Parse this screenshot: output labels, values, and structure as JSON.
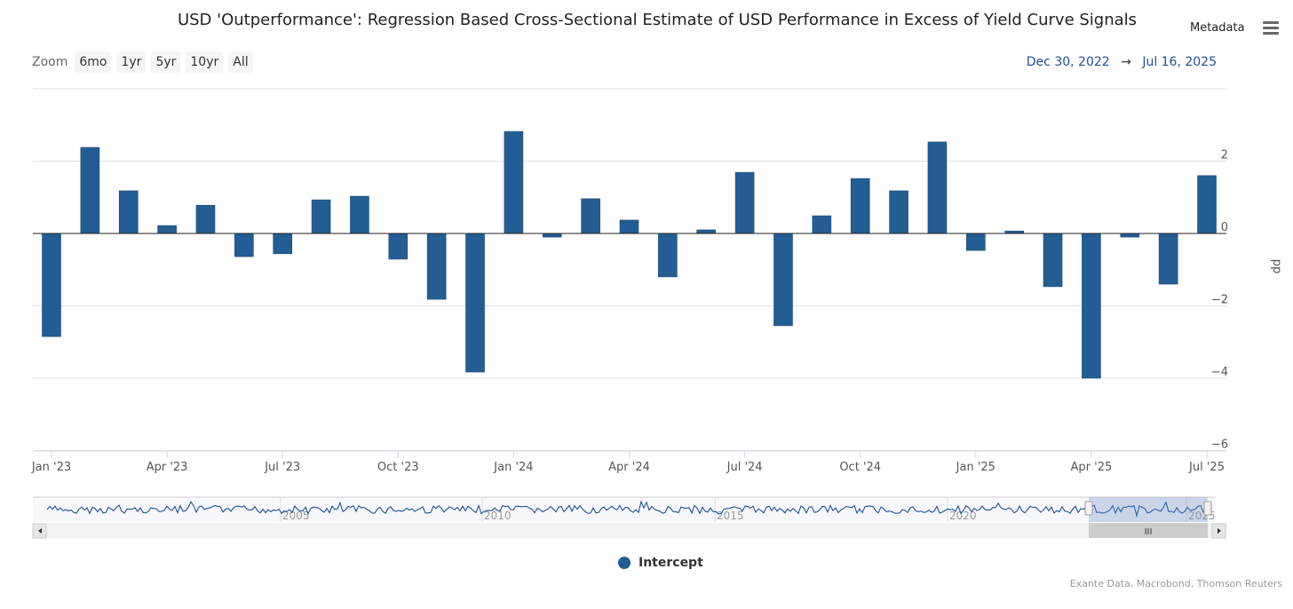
{
  "header": {
    "title": "USD 'Outperformance': Regression Based Cross-Sectional Estimate of USD Performance in Excess of Yield Curve Signals",
    "metadata_label": "Metadata",
    "menu_icon": "hamburger-menu-icon"
  },
  "zoom": {
    "label": "Zoom",
    "buttons": [
      "6mo",
      "1yr",
      "5yr",
      "10yr",
      "All"
    ]
  },
  "range": {
    "from": "Dec 30, 2022",
    "arrow": "→",
    "to": "Jul 16, 2025"
  },
  "navigator": {
    "labels": [
      "2005",
      "2010",
      "2015",
      "2020",
      "2025"
    ],
    "selection_start_fraction": 0.895,
    "selection_end_fraction": 0.995
  },
  "legend": {
    "label": "Intercept"
  },
  "credits": "Exante Data, Macrobond, Thomson Reuters",
  "colors": {
    "bar": "#235d93",
    "grid": "#e0e0e0",
    "navigator_line": "#1f4f9a"
  },
  "chart_data": {
    "type": "bar",
    "title": "USD 'Outperformance': Regression Based Cross-Sectional Estimate of USD Performance in Excess of Yield Curve Signals",
    "ylabel": "pp",
    "xlabel": "",
    "ylim": [
      -6,
      4
    ],
    "yticks": [
      -6,
      -4,
      -2,
      0,
      2
    ],
    "xtick_labels": [
      "Jan '23",
      "Apr '23",
      "Jul '23",
      "Oct '23",
      "Jan '24",
      "Apr '24",
      "Jul '24",
      "Oct '24",
      "Jan '25",
      "Apr '25",
      "Jul '25"
    ],
    "categories": [
      "Jan 2023",
      "Feb 2023",
      "Mar 2023",
      "Apr 2023",
      "May 2023",
      "Jun 2023",
      "Jul 2023",
      "Aug 2023",
      "Sep 2023",
      "Oct 2023",
      "Nov 2023",
      "Dec 2023",
      "Jan 2024",
      "Feb 2024",
      "Mar 2024",
      "Apr 2024",
      "May 2024",
      "Jun 2024",
      "Jul 2024",
      "Aug 2024",
      "Sep 2024",
      "Oct 2024",
      "Nov 2024",
      "Dec 2024",
      "Jan 2025",
      "Feb 2025",
      "Mar 2025",
      "Apr 2025",
      "May 2025",
      "Jun 2025",
      "Jul 2025"
    ],
    "series": [
      {
        "name": "Intercept",
        "values": [
          -2.85,
          2.38,
          1.18,
          0.22,
          0.78,
          -0.64,
          -0.56,
          0.93,
          1.03,
          -0.71,
          -1.82,
          -3.83,
          2.82,
          -0.1,
          0.96,
          0.37,
          -1.2,
          0.1,
          1.69,
          -2.55,
          0.49,
          1.52,
          1.18,
          2.53,
          -0.47,
          0.07,
          -1.47,
          -4.0,
          -0.1,
          -1.4,
          1.6
        ]
      }
    ],
    "legend": "bottom-center"
  }
}
